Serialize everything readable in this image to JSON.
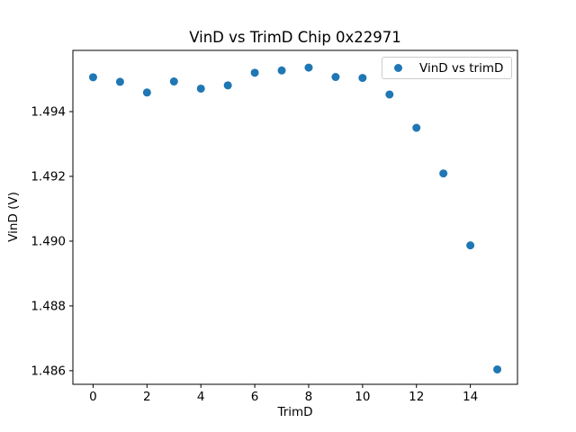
{
  "chart_data": {
    "type": "scatter",
    "title": "VinD vs TrimD Chip 0x22971",
    "xlabel": "TrimD",
    "ylabel": "VinD (V)",
    "legend": [
      {
        "label": "VinD vs trimD",
        "marker": "circle-icon",
        "color": "#1f77b4"
      }
    ],
    "legend_position": "upper right",
    "x": [
      0,
      1,
      2,
      3,
      4,
      5,
      6,
      7,
      8,
      9,
      10,
      11,
      12,
      13,
      14,
      15
    ],
    "y": [
      1.49506,
      1.49492,
      1.49459,
      1.49493,
      1.49471,
      1.49481,
      1.4952,
      1.49527,
      1.49536,
      1.49507,
      1.49504,
      1.49453,
      1.4935,
      1.49209,
      1.48987,
      1.48604
    ],
    "xlim": [
      -0.75,
      15.75
    ],
    "ylim": [
      1.48558,
      1.49589
    ],
    "xticks": [
      0,
      2,
      4,
      6,
      8,
      10,
      12,
      14
    ],
    "xtick_labels": [
      "0",
      "2",
      "4",
      "6",
      "8",
      "10",
      "12",
      "14"
    ],
    "yticks": [
      1.486,
      1.488,
      1.49,
      1.492,
      1.494
    ],
    "ytick_labels": [
      "1.486",
      "1.488",
      "1.490",
      "1.492",
      "1.494"
    ],
    "grid": false,
    "marker_color": "#1f77b4",
    "background_color": "#ffffff",
    "spine_color": "#000000",
    "legend_border_color": "#cccccc"
  }
}
